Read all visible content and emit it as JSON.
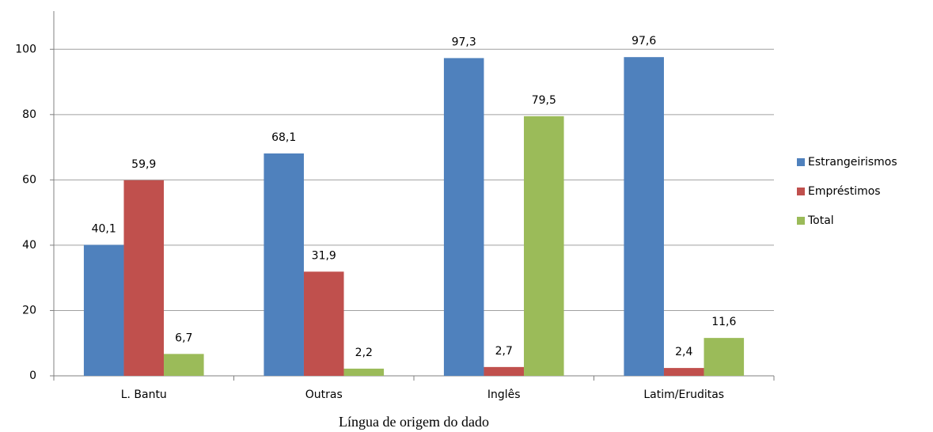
{
  "chart_data": {
    "type": "bar",
    "x_label": "Língua de origem do dado",
    "categories": [
      "L. Bantu",
      "Outras",
      "Inglês",
      "Latim/Eruditas"
    ],
    "series": [
      {
        "name": "Estrangeirismos",
        "color": "#4f81bd",
        "values": [
          40.1,
          68.1,
          97.3,
          97.6
        ],
        "value_labels": [
          "40,1",
          "68,1",
          "97,3",
          "97,6"
        ]
      },
      {
        "name": "Empréstimos",
        "color": "#c0504d",
        "values": [
          59.9,
          31.9,
          2.7,
          2.4
        ],
        "value_labels": [
          "59,9",
          "31,9",
          "2,7",
          "2,4"
        ]
      },
      {
        "name": "Total",
        "color": "#9bbb59",
        "values": [
          6.7,
          2.2,
          79.5,
          11.6
        ],
        "value_labels": [
          "6,7",
          "2,2",
          "79,5",
          "11,6"
        ]
      }
    ],
    "ylim": [
      0,
      110
    ],
    "yticks": [
      0,
      20,
      40,
      60,
      80,
      100
    ],
    "grid": true,
    "legend": "right"
  }
}
